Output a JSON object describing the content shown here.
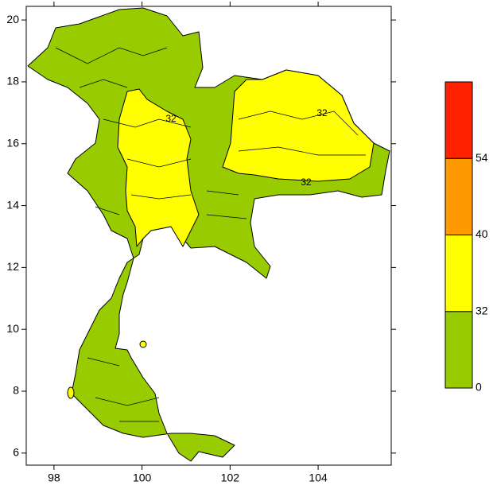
{
  "axes": {
    "xlim": [
      97.37,
      105.66
    ],
    "ylim": [
      5.61,
      20.44
    ],
    "xticks": [
      98,
      100,
      102,
      104
    ],
    "yticks": [
      6,
      8,
      10,
      12,
      14,
      16,
      18,
      20
    ]
  },
  "colorbar": {
    "levels": [
      0,
      32,
      40,
      54
    ],
    "colors": [
      "#99cc00",
      "#ffff00",
      "#ff9900",
      "#ff2200"
    ]
  },
  "contour_labels": [
    "32",
    "32",
    "32"
  ]
}
